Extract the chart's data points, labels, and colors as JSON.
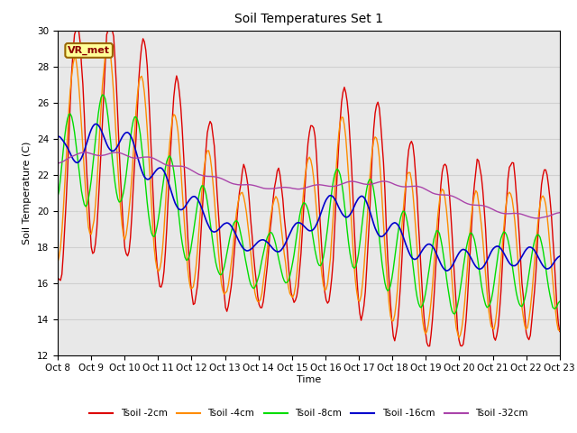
{
  "title": "Soil Temperatures Set 1",
  "xlabel": "Time",
  "ylabel": "Soil Temperature (C)",
  "ylim": [
    12,
    30
  ],
  "annotation": "VR_met",
  "xtick_labels": [
    "Oct 8",
    "Oct 9",
    "Oct 10",
    "Oct 11",
    "Oct 12",
    "Oct 13",
    "Oct 14",
    "Oct 15",
    "Oct 16",
    "Oct 17",
    "Oct 18",
    "Oct 19",
    "Oct 20",
    "Oct 21",
    "Oct 22",
    "Oct 23"
  ],
  "series_colors": {
    "Tsoil -2cm": "#dd0000",
    "Tsoil -4cm": "#ff8c00",
    "Tsoil -8cm": "#00dd00",
    "Tsoil -16cm": "#0000cc",
    "Tsoil -32cm": "#aa44aa"
  },
  "grid_color": "#d0d0d0",
  "plot_bg": "#e8e8e8",
  "fig_bg": "#ffffff"
}
